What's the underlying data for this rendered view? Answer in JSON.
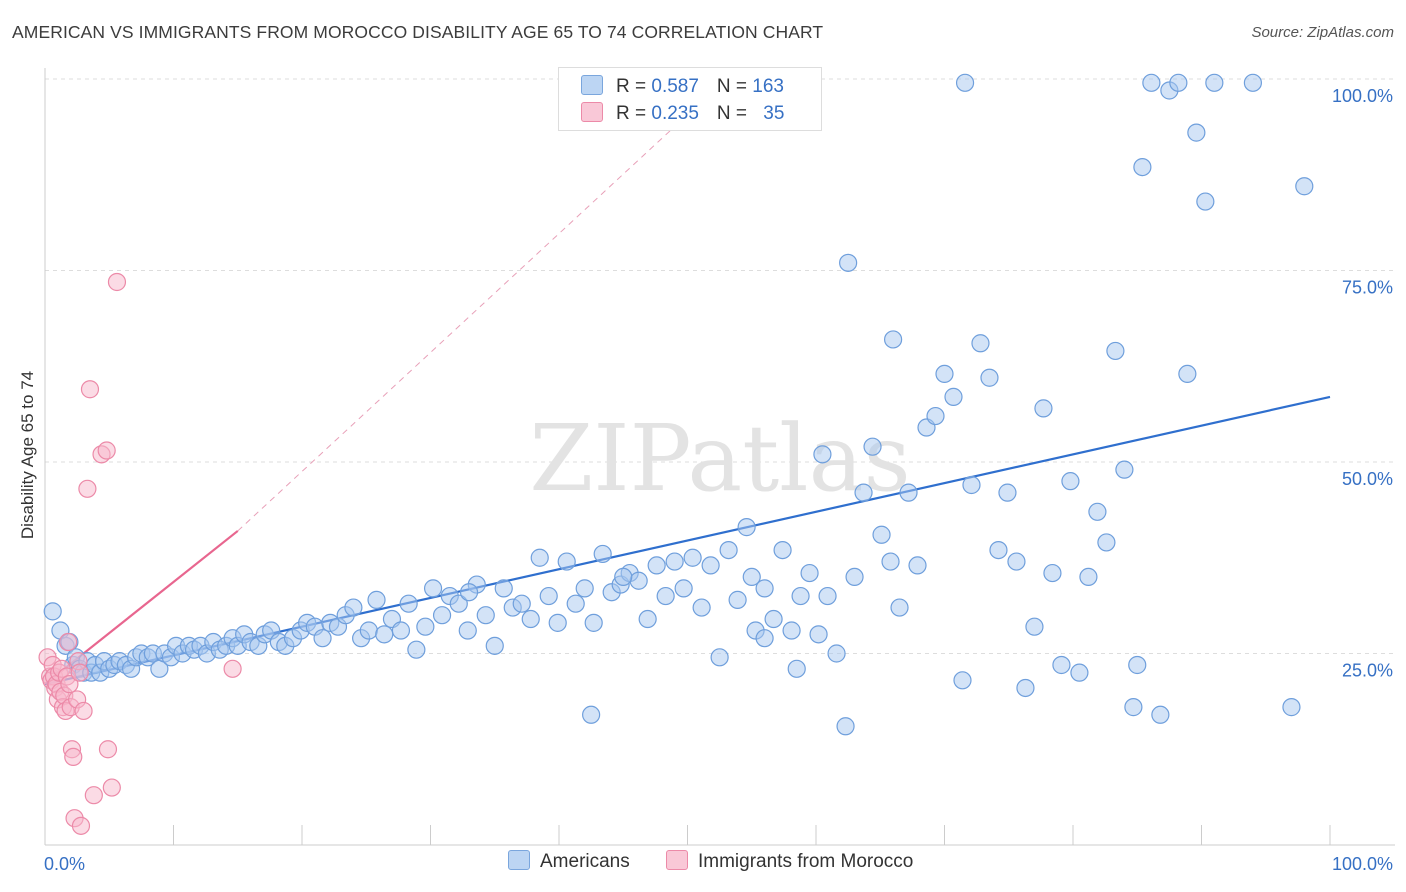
{
  "title": "AMERICAN VS IMMIGRANTS FROM MOROCCO DISABILITY AGE 65 TO 74 CORRELATION CHART",
  "source": "Source: ZipAtlas.com",
  "watermark": "ZIPatlas",
  "legend": {
    "rows": [
      {
        "r_label": "R = ",
        "r_value": "0.587",
        "n_label": "N = ",
        "n_value": "163"
      },
      {
        "r_label": "R = ",
        "r_value": "0.235",
        "n_label": "N = ",
        "n_value": "35"
      }
    ],
    "bottom": [
      "Americans",
      "Immigrants from Morocco"
    ]
  },
  "colors": {
    "blue_fill": "#a8c8f0",
    "blue_stroke": "#6f9fdc",
    "blue_line": "#2f6fce",
    "pink_fill": "#f7b8cb",
    "pink_stroke": "#ec8aa8",
    "pink_line": "#e8668f",
    "tick_label": "#3670c4",
    "grid": "#dddddd"
  },
  "chart_data": {
    "type": "scatter",
    "title": "AMERICAN VS IMMIGRANTS FROM MOROCCO DISABILITY AGE 65 TO 74 CORRELATION CHART",
    "xlabel": "",
    "ylabel": "Disability Age 65 to 74",
    "xlim": [
      0,
      100
    ],
    "ylim": [
      0,
      100
    ],
    "x_tick_labels": [
      {
        "value": 0,
        "label": "0.0%"
      },
      {
        "value": 100,
        "label": "100.0%"
      }
    ],
    "y_tick_labels": [
      {
        "value": 25,
        "label": "25.0%"
      },
      {
        "value": 50,
        "label": "50.0%"
      },
      {
        "value": 75,
        "label": "75.0%"
      },
      {
        "value": 100,
        "label": "100.0%"
      }
    ],
    "series": [
      {
        "name": "Americans",
        "r": 0.587,
        "n": 163,
        "trend": {
          "x0": 0,
          "y0": 21.0,
          "x1": 100,
          "y1": 58.5
        },
        "points": [
          [
            0.6,
            30.5
          ],
          [
            1.2,
            28.0
          ],
          [
            1.6,
            26.0
          ],
          [
            1.9,
            26.5
          ],
          [
            2.2,
            23.5
          ],
          [
            2.4,
            24.5
          ],
          [
            2.7,
            23.0
          ],
          [
            3.0,
            22.5
          ],
          [
            3.3,
            24.0
          ],
          [
            3.6,
            22.5
          ],
          [
            3.9,
            23.5
          ],
          [
            4.3,
            22.5
          ],
          [
            4.6,
            24.0
          ],
          [
            5.0,
            23.0
          ],
          [
            5.4,
            23.5
          ],
          [
            5.8,
            24.0
          ],
          [
            6.3,
            23.5
          ],
          [
            6.7,
            23.0
          ],
          [
            7.1,
            24.5
          ],
          [
            7.5,
            25.0
          ],
          [
            8.0,
            24.5
          ],
          [
            8.4,
            25.0
          ],
          [
            8.9,
            23.0
          ],
          [
            9.3,
            25.0
          ],
          [
            9.8,
            24.5
          ],
          [
            10.2,
            26.0
          ],
          [
            10.7,
            25.0
          ],
          [
            11.2,
            26.0
          ],
          [
            11.6,
            25.5
          ],
          [
            12.1,
            26.0
          ],
          [
            12.6,
            25.0
          ],
          [
            13.1,
            26.5
          ],
          [
            13.6,
            25.5
          ],
          [
            14.1,
            26.0
          ],
          [
            14.6,
            27.0
          ],
          [
            15.0,
            26.0
          ],
          [
            15.5,
            27.5
          ],
          [
            16.0,
            26.5
          ],
          [
            16.6,
            26.0
          ],
          [
            17.1,
            27.5
          ],
          [
            17.6,
            28.0
          ],
          [
            18.2,
            26.5
          ],
          [
            18.7,
            26.0
          ],
          [
            19.3,
            27.0
          ],
          [
            19.9,
            28.0
          ],
          [
            20.4,
            29.0
          ],
          [
            21.0,
            28.5
          ],
          [
            21.6,
            27.0
          ],
          [
            22.2,
            29.0
          ],
          [
            22.8,
            28.5
          ],
          [
            23.4,
            30.0
          ],
          [
            24.0,
            31.0
          ],
          [
            24.6,
            27.0
          ],
          [
            25.2,
            28.0
          ],
          [
            25.8,
            32.0
          ],
          [
            26.4,
            27.5
          ],
          [
            27.0,
            29.5
          ],
          [
            27.7,
            28.0
          ],
          [
            28.3,
            31.5
          ],
          [
            28.9,
            25.5
          ],
          [
            29.6,
            28.5
          ],
          [
            30.2,
            33.5
          ],
          [
            30.9,
            30.0
          ],
          [
            31.5,
            32.5
          ],
          [
            32.2,
            31.5
          ],
          [
            32.9,
            28.0
          ],
          [
            33.6,
            34.0
          ],
          [
            34.3,
            30.0
          ],
          [
            35.0,
            26.0
          ],
          [
            35.7,
            33.5
          ],
          [
            36.4,
            31.0
          ],
          [
            37.1,
            31.5
          ],
          [
            37.8,
            29.5
          ],
          [
            38.5,
            37.5
          ],
          [
            39.2,
            32.5
          ],
          [
            39.9,
            29.0
          ],
          [
            40.6,
            37.0
          ],
          [
            41.3,
            31.5
          ],
          [
            42.0,
            33.5
          ],
          [
            42.7,
            29.0
          ],
          [
            43.4,
            38.0
          ],
          [
            44.1,
            33.0
          ],
          [
            44.8,
            34.0
          ],
          [
            45.5,
            35.5
          ],
          [
            46.2,
            34.5
          ],
          [
            46.9,
            29.5
          ],
          [
            47.6,
            36.5
          ],
          [
            48.3,
            32.5
          ],
          [
            49.0,
            37.0
          ],
          [
            49.7,
            33.5
          ],
          [
            50.4,
            37.5
          ],
          [
            51.1,
            31.0
          ],
          [
            51.8,
            36.5
          ],
          [
            52.5,
            24.5
          ],
          [
            53.2,
            38.5
          ],
          [
            53.9,
            32.0
          ],
          [
            54.6,
            41.5
          ],
          [
            55.3,
            28.0
          ],
          [
            56.0,
            33.5
          ],
          [
            56.7,
            29.5
          ],
          [
            57.4,
            38.5
          ],
          [
            58.1,
            28.0
          ],
          [
            58.8,
            32.5
          ],
          [
            59.5,
            35.5
          ],
          [
            60.2,
            27.5
          ],
          [
            60.9,
            32.5
          ],
          [
            61.6,
            25.0
          ],
          [
            62.3,
            15.5
          ],
          [
            63.0,
            35.0
          ],
          [
            63.7,
            46.0
          ],
          [
            64.4,
            52.0
          ],
          [
            65.1,
            40.5
          ],
          [
            65.8,
            37.0
          ],
          [
            66.5,
            31.0
          ],
          [
            67.2,
            46.0
          ],
          [
            67.9,
            36.5
          ],
          [
            68.6,
            54.5
          ],
          [
            69.3,
            56.0
          ],
          [
            70.0,
            61.5
          ],
          [
            70.7,
            58.5
          ],
          [
            71.4,
            21.5
          ],
          [
            72.1,
            47.0
          ],
          [
            72.8,
            65.5
          ],
          [
            73.5,
            61.0
          ],
          [
            74.2,
            38.5
          ],
          [
            74.9,
            46.0
          ],
          [
            75.6,
            37.0
          ],
          [
            76.3,
            20.5
          ],
          [
            77.0,
            28.5
          ],
          [
            77.7,
            57.0
          ],
          [
            78.4,
            35.5
          ],
          [
            79.1,
            23.5
          ],
          [
            79.8,
            47.5
          ],
          [
            80.5,
            22.5
          ],
          [
            81.2,
            35.0
          ],
          [
            81.9,
            43.5
          ],
          [
            82.6,
            39.5
          ],
          [
            83.3,
            64.5
          ],
          [
            84.0,
            49.0
          ],
          [
            84.7,
            18.0
          ],
          [
            85.4,
            88.5
          ],
          [
            86.1,
            99.5
          ],
          [
            86.8,
            17.0
          ],
          [
            87.5,
            98.5
          ],
          [
            88.2,
            99.5
          ],
          [
            88.9,
            61.5
          ],
          [
            89.6,
            93.0
          ],
          [
            90.3,
            84.0
          ],
          [
            91.0,
            99.5
          ],
          [
            62.5,
            76.0
          ],
          [
            71.6,
            99.5
          ],
          [
            85.0,
            23.5
          ],
          [
            33.0,
            33.0
          ],
          [
            55.0,
            35.0
          ],
          [
            60.5,
            51.0
          ],
          [
            66.0,
            66.0
          ],
          [
            58.5,
            23.0
          ],
          [
            42.5,
            17.0
          ],
          [
            98.0,
            86.0
          ],
          [
            97.0,
            18.0
          ],
          [
            94.0,
            99.5
          ],
          [
            56.0,
            27.0
          ],
          [
            45.0,
            35.0
          ]
        ]
      },
      {
        "name": "Immigrants from Morocco",
        "r": 0.235,
        "n": 35,
        "trend": {
          "x0": 0,
          "y0": 21.0,
          "x1": 15,
          "y1": 41.0
        },
        "trend_extension": {
          "x0": 15,
          "y0": 41.0,
          "x1": 53,
          "y1": 100.0
        },
        "points": [
          [
            0.2,
            24.5
          ],
          [
            0.4,
            22.0
          ],
          [
            0.5,
            21.5
          ],
          [
            0.6,
            23.5
          ],
          [
            0.7,
            22.0
          ],
          [
            0.8,
            20.5
          ],
          [
            0.9,
            21.0
          ],
          [
            1.0,
            19.0
          ],
          [
            1.1,
            22.5
          ],
          [
            1.2,
            20.0
          ],
          [
            1.3,
            23.0
          ],
          [
            1.4,
            18.0
          ],
          [
            1.5,
            19.5
          ],
          [
            1.6,
            17.5
          ],
          [
            1.7,
            22.0
          ],
          [
            1.8,
            26.5
          ],
          [
            1.9,
            21.0
          ],
          [
            2.0,
            18.0
          ],
          [
            2.1,
            12.5
          ],
          [
            2.2,
            11.5
          ],
          [
            2.3,
            3.5
          ],
          [
            2.5,
            19.0
          ],
          [
            2.6,
            24.0
          ],
          [
            2.7,
            22.5
          ],
          [
            2.8,
            2.5
          ],
          [
            3.0,
            17.5
          ],
          [
            3.3,
            46.5
          ],
          [
            3.5,
            59.5
          ],
          [
            3.8,
            6.5
          ],
          [
            4.4,
            51.0
          ],
          [
            4.8,
            51.5
          ],
          [
            4.9,
            12.5
          ],
          [
            5.2,
            7.5
          ],
          [
            5.6,
            73.5
          ],
          [
            14.6,
            23.0
          ]
        ]
      }
    ]
  }
}
